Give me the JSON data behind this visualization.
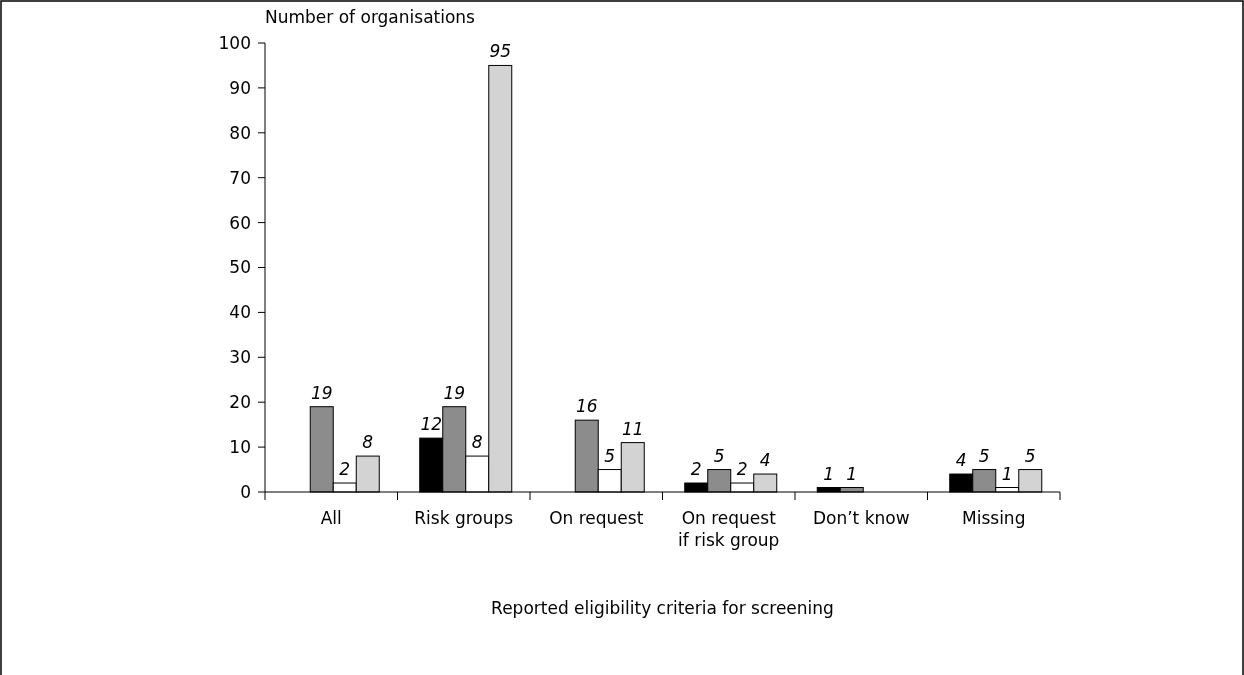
{
  "chart_data": {
    "type": "bar",
    "xlabel": "Reported eligibility criteria for screening",
    "ylabel": "Number of organisations",
    "categories": [
      "All",
      "Risk groups",
      "On request",
      "On request if risk group",
      "Don’t know",
      "Missing"
    ],
    "series": [
      {
        "color": "#000000",
        "values": [
          null,
          12,
          null,
          2,
          1,
          4
        ]
      },
      {
        "color": "#8c8c8c",
        "values": [
          19,
          19,
          16,
          5,
          1,
          5
        ]
      },
      {
        "color": "#ffffff",
        "values": [
          2,
          8,
          5,
          2,
          null,
          1
        ]
      },
      {
        "color": "#d3d3d3",
        "values": [
          8,
          95,
          11,
          4,
          null,
          5
        ]
      }
    ],
    "ylim": [
      0,
      100
    ],
    "yticks": [
      0,
      10,
      20,
      30,
      40,
      50,
      60,
      70,
      80,
      90,
      100
    ],
    "data_labels": true
  }
}
